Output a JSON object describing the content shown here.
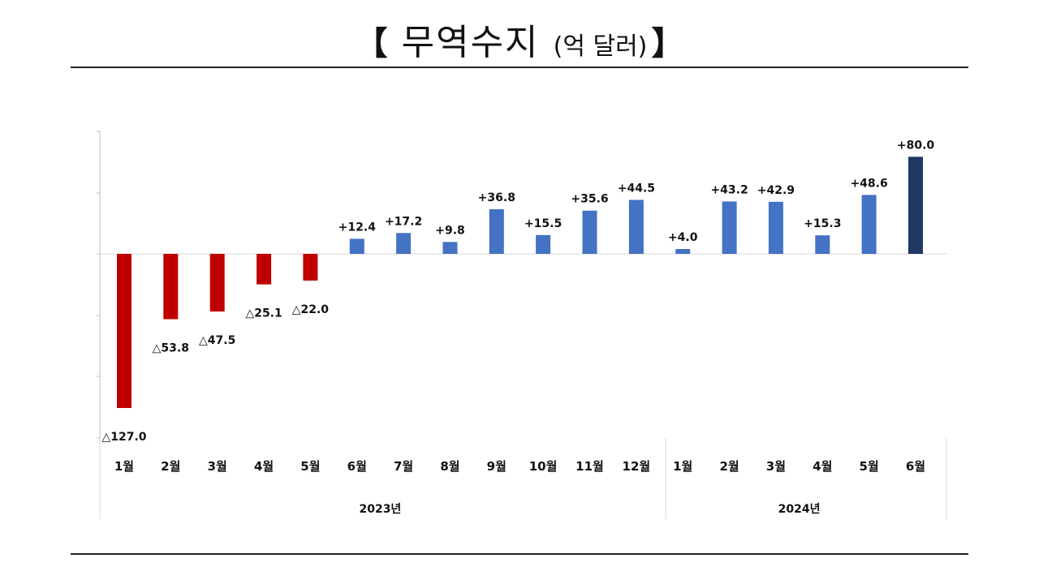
{
  "title": {
    "open_bracket": "【",
    "main": "무역수지",
    "unit": "(억 달러)",
    "close_bracket": "】"
  },
  "colors": {
    "deficit": "#c00000",
    "surplus": "#4472c4",
    "highlight": "#1f3864"
  },
  "chart_data": {
    "type": "bar",
    "title": "무역수지 (억 달러)",
    "xlabel": "",
    "ylabel": "",
    "ylim": [
      -127.0,
      80.0
    ],
    "categories": [
      "1월",
      "2월",
      "3월",
      "4월",
      "5월",
      "6월",
      "7월",
      "8월",
      "9월",
      "10월",
      "11월",
      "12월",
      "1월",
      "2월",
      "3월",
      "4월",
      "5월",
      "6월"
    ],
    "groups": [
      {
        "label": "2023년",
        "start": 0,
        "end": 11
      },
      {
        "label": "2024년",
        "start": 12,
        "end": 17
      }
    ],
    "series": [
      {
        "values": [
          -127.0,
          -53.8,
          -47.5,
          -25.1,
          -22.0,
          12.4,
          17.2,
          9.8,
          36.8,
          15.5,
          35.6,
          44.5,
          4.0,
          43.2,
          42.9,
          15.3,
          48.6,
          80.0
        ],
        "data_labels": [
          "△127.0",
          "△53.8",
          "△47.5",
          "△25.1",
          "△22.0",
          "+12.4",
          "+17.2",
          "+9.8",
          "+36.8",
          "+15.5",
          "+35.6",
          "+44.5",
          "+4.0",
          "+43.2",
          "+42.9",
          "+15.3",
          "+48.6",
          "+80.0"
        ]
      }
    ],
    "grid": false,
    "legend": "none"
  }
}
